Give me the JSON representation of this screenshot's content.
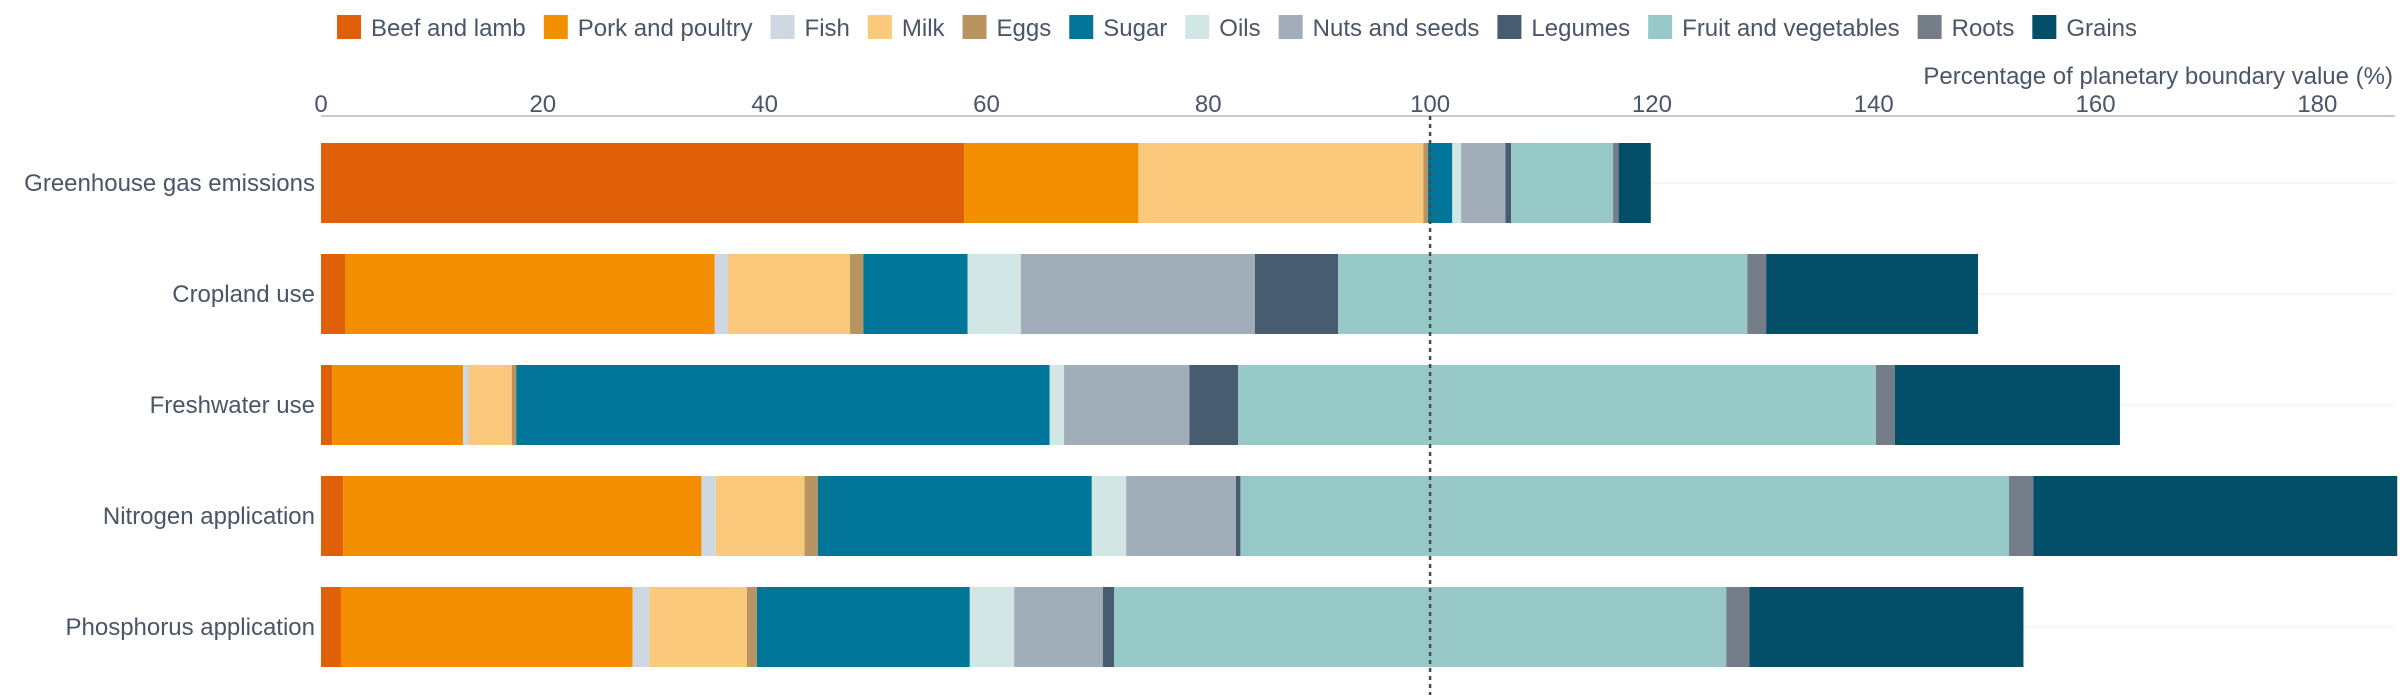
{
  "chart_data": {
    "type": "bar",
    "orientation": "horizontal",
    "stacked": true,
    "xlabel": "Percentage of planetary boundary value (%)",
    "xlim": [
      0,
      187
    ],
    "xticks": [
      0,
      20,
      40,
      60,
      80,
      100,
      120,
      140,
      160,
      180
    ],
    "reference_line": 100,
    "categories": [
      "Greenhouse gas emissions",
      "Cropland use",
      "Freshwater use",
      "Nitrogen application",
      "Phosphorus application"
    ],
    "series": [
      {
        "name": "Beef and lamb",
        "color": "#e0600a",
        "values": [
          58,
          2.2,
          1.0,
          2.0,
          1.8
        ]
      },
      {
        "name": "Pork and poultry",
        "color": "#f28e00",
        "values": [
          15.7,
          33.3,
          11.8,
          32.3,
          26.3
        ]
      },
      {
        "name": "Fish",
        "color": "#cdd8e3",
        "values": [
          0,
          1.2,
          0.5,
          1.3,
          1.5
        ]
      },
      {
        "name": "Milk",
        "color": "#fbc97c",
        "values": [
          25.7,
          11.0,
          3.9,
          8.0,
          8.8
        ]
      },
      {
        "name": "Eggs",
        "color": "#b89460",
        "values": [
          0.4,
          1.2,
          0.4,
          1.2,
          0.9
        ]
      },
      {
        "name": "Sugar",
        "color": "#017698",
        "values": [
          2.2,
          9.4,
          48.1,
          24.7,
          19.2
        ]
      },
      {
        "name": "Oils",
        "color": "#d1e6e5",
        "values": [
          0.8,
          4.8,
          1.3,
          3.1,
          4.0
        ]
      },
      {
        "name": "Nuts and seeds",
        "color": "#a2adba",
        "values": [
          4.0,
          21.1,
          11.3,
          9.9,
          8.0
        ]
      },
      {
        "name": "Legumes",
        "color": "#475d6f",
        "values": [
          0.5,
          7.5,
          4.4,
          0.4,
          1.0
        ]
      },
      {
        "name": "Fruit and vegetables",
        "color": "#96c9c8",
        "values": [
          9.2,
          36.9,
          57.5,
          69.3,
          55.2
        ]
      },
      {
        "name": "Roots",
        "color": "#757d88",
        "values": [
          0.5,
          1.7,
          1.7,
          2.2,
          2.1
        ]
      },
      {
        "name": "Grains",
        "color": "#034f6a",
        "values": [
          2.9,
          19.1,
          20.3,
          32.8,
          24.7
        ]
      }
    ]
  }
}
